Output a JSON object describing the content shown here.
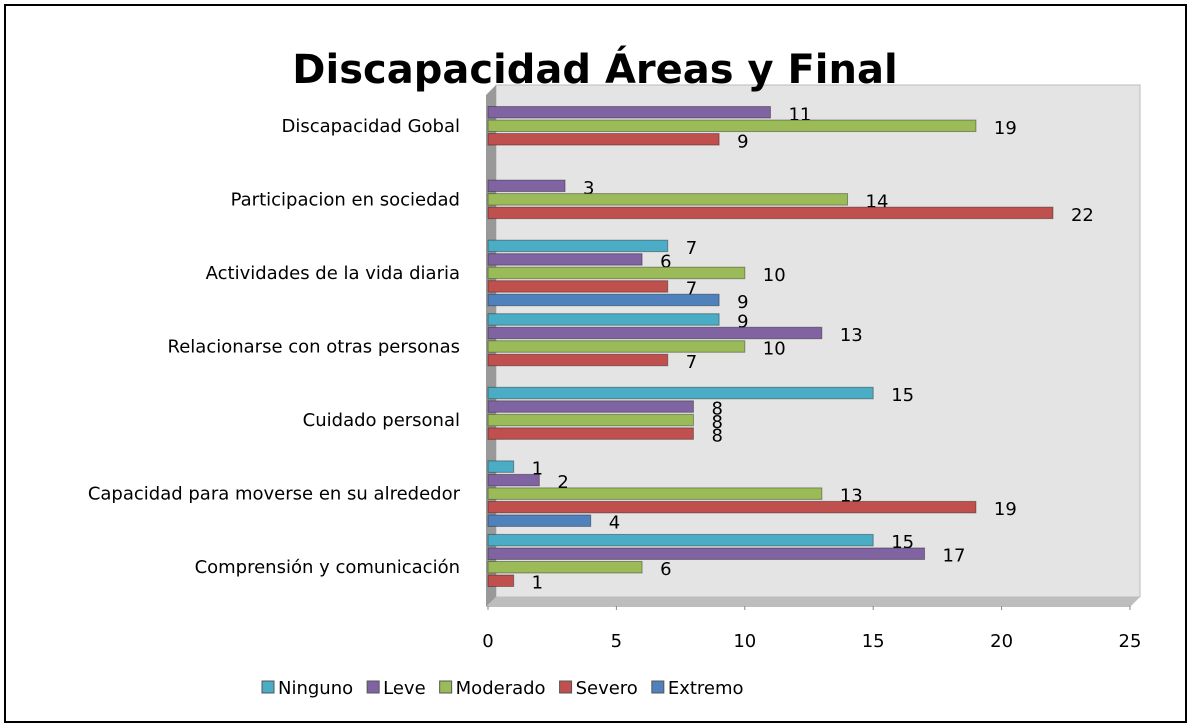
{
  "chart_data": {
    "type": "bar",
    "orientation": "horizontal",
    "title": "Discapacidad Áreas y Final",
    "categories": [
      "Discapacidad Gobal",
      "Participacion en sociedad",
      "Actividades de la vida diaria",
      "Relacionarse con otras personas",
      "Cuidado personal",
      "Capacidad para moverse en su alrededor",
      "Comprensión y comunicación"
    ],
    "series": [
      {
        "name": "Ninguno",
        "color": "#4bacc6",
        "values": [
          null,
          null,
          7,
          9,
          15,
          1,
          15
        ]
      },
      {
        "name": "Leve",
        "color": "#8064a2",
        "values": [
          11,
          3,
          6,
          13,
          8,
          2,
          17
        ]
      },
      {
        "name": "Moderado",
        "color": "#9bbb59",
        "values": [
          19,
          14,
          10,
          10,
          8,
          13,
          6
        ]
      },
      {
        "name": "Severo",
        "color": "#c0504d",
        "values": [
          9,
          22,
          7,
          7,
          8,
          19,
          1
        ]
      },
      {
        "name": "Extremo",
        "color": "#4f81bd",
        "values": [
          null,
          null,
          9,
          null,
          null,
          4,
          null
        ]
      }
    ],
    "xlim": [
      0,
      25
    ],
    "xticks": [
      0,
      5,
      10,
      15,
      20,
      25
    ],
    "legend": "bottom"
  }
}
